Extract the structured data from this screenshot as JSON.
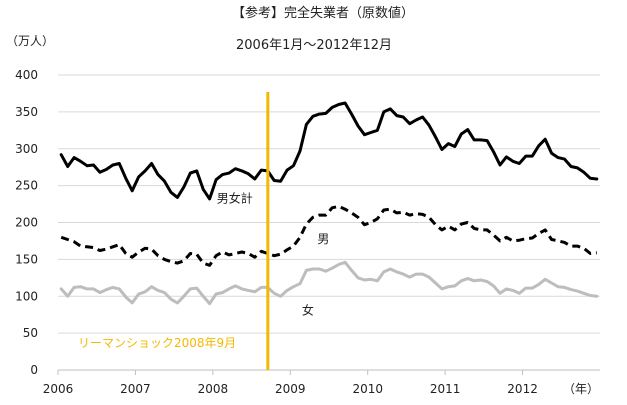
{
  "title": "【参考】完全失業者（原数値）",
  "subtitle": "2006年1月～2012年12月",
  "chart_data": {
    "type": "line",
    "ylabel": "（万人）",
    "xlabel": "（年）",
    "ylim": [
      0,
      400
    ],
    "yticks": [
      "0",
      "50",
      "100",
      "150",
      "200",
      "250",
      "300",
      "350",
      "400"
    ],
    "xlim": [
      2006,
      2013
    ],
    "xticks": [
      "2006",
      "2007",
      "2008",
      "2009",
      "2010",
      "2011",
      "2012"
    ],
    "grid": true,
    "x_unit": "monthly, Jan 2006 – Dec 2012",
    "series": [
      {
        "name": "男女計",
        "color": "#000000",
        "style": "solid",
        "values": [
          292,
          276,
          288,
          283,
          277,
          278,
          268,
          272,
          278,
          280,
          260,
          243,
          262,
          270,
          280,
          265,
          256,
          241,
          234,
          248,
          267,
          270,
          245,
          232,
          258,
          265,
          267,
          273,
          270,
          266,
          259,
          271,
          270,
          257,
          256,
          271,
          277,
          297,
          333,
          344,
          347,
          348,
          356,
          360,
          362,
          347,
          331,
          319,
          322,
          325,
          350,
          354,
          345,
          343,
          334,
          339,
          343,
          332,
          316,
          299,
          307,
          303,
          320,
          326,
          312,
          312,
          311,
          296,
          278,
          289,
          283,
          280,
          290,
          290,
          304,
          313,
          294,
          288,
          286,
          276,
          274,
          268,
          260,
          259
        ]
      },
      {
        "name": "男",
        "color": "#000000",
        "style": "dashed",
        "values": [
          180,
          177,
          174,
          168,
          167,
          166,
          162,
          164,
          167,
          170,
          158,
          153,
          160,
          165,
          164,
          155,
          150,
          147,
          145,
          148,
          158,
          157,
          145,
          142,
          155,
          160,
          156,
          158,
          160,
          158,
          153,
          161,
          158,
          155,
          157,
          163,
          168,
          180,
          198,
          207,
          210,
          210,
          220,
          222,
          218,
          213,
          207,
          197,
          200,
          205,
          217,
          218,
          213,
          214,
          210,
          212,
          211,
          207,
          197,
          190,
          195,
          190,
          198,
          200,
          192,
          190,
          190,
          183,
          175,
          180,
          175,
          176,
          178,
          179,
          185,
          190,
          177,
          175,
          173,
          168,
          168,
          165,
          158,
          159
        ]
      },
      {
        "name": "女",
        "color": "#bdbdbd",
        "style": "solid",
        "values": [
          110,
          100,
          112,
          113,
          110,
          110,
          105,
          109,
          112,
          110,
          99,
          91,
          103,
          106,
          113,
          108,
          105,
          96,
          91,
          100,
          110,
          111,
          100,
          90,
          103,
          105,
          110,
          114,
          110,
          108,
          106,
          112,
          112,
          104,
          100,
          108,
          113,
          117,
          135,
          137,
          137,
          134,
          138,
          143,
          146,
          135,
          125,
          122,
          123,
          121,
          133,
          137,
          133,
          130,
          126,
          130,
          130,
          126,
          118,
          110,
          113,
          114,
          121,
          124,
          121,
          122,
          120,
          114,
          104,
          110,
          108,
          104,
          111,
          111,
          116,
          123,
          118,
          113,
          112,
          109,
          107,
          104,
          101,
          100
        ]
      }
    ],
    "series_labels": [
      {
        "series": "男女計",
        "text": "男女計",
        "x": 2008.05,
        "y": 227
      },
      {
        "series": "男",
        "text": "男",
        "x": 2009.35,
        "y": 172
      },
      {
        "series": "女",
        "text": "女",
        "x": 2009.15,
        "y": 75
      }
    ],
    "annotations": [
      {
        "type": "vertical_line",
        "x": 2008.71,
        "color": "#f5b800",
        "text": "リーマンショック2008年9月"
      }
    ]
  }
}
